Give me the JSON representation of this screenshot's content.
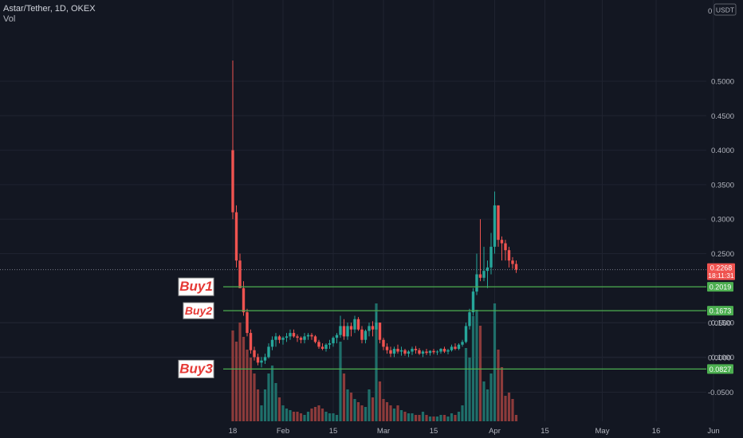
{
  "header": {
    "title": "Astar/Tether, 1D, OKEX",
    "vol_label": "Vol"
  },
  "currency": "USDT",
  "colors": {
    "up": "#26a69a",
    "down": "#ef5350",
    "up_vol": "#1f6f6a",
    "down_vol": "#8c3b3b",
    "level": "#4caf50",
    "bg": "#131722",
    "grid": "#1f2330",
    "axis_text": "#b2b5be",
    "annotation_text": "#e53935"
  },
  "chart_data": {
    "type": "candlestick",
    "price_axis_labels": [
      "0.5000",
      "0.4500",
      "0.4000",
      "0.3500",
      "0.3000",
      "0.2500",
      "0.1500",
      "0.1000"
    ],
    "price_axis_label_values": [
      0.5,
      0.45,
      0.4,
      0.35,
      0.3,
      0.25,
      0.15,
      0.1
    ],
    "volume_axis_labels": [
      "0.0500",
      "0.0000",
      "-0.0500"
    ],
    "volume_axis_label_values": [
      0.05,
      0.0,
      -0.05
    ],
    "x_ticks": [
      {
        "label": "18",
        "day": 0
      },
      {
        "label": "Feb",
        "day": 14
      },
      {
        "label": "15",
        "day": 28
      },
      {
        "label": "Mar",
        "day": 42
      },
      {
        "label": "15",
        "day": 56
      },
      {
        "label": "Apr",
        "day": 73
      },
      {
        "label": "15",
        "day": 87
      },
      {
        "label": "May",
        "day": 103
      },
      {
        "label": "16",
        "day": 118
      },
      {
        "label": "Jun",
        "day": 134
      }
    ],
    "current_price": {
      "value": 0.2268,
      "label": "0.2268",
      "countdown": "18:11:31"
    },
    "levels": [
      {
        "name": "Buy1",
        "value": 0.2019,
        "label": "0.2019"
      },
      {
        "name": "Buy2",
        "value": 0.1673,
        "label": "0.1673"
      },
      {
        "name": "Buy3",
        "value": 0.0827,
        "label": "0.0827"
      }
    ],
    "candles": [
      [
        0.4,
        0.53,
        0.3,
        0.31,
        0.057
      ],
      [
        0.31,
        0.32,
        0.23,
        0.24,
        0.05
      ],
      [
        0.24,
        0.25,
        0.2,
        0.2,
        0.062
      ],
      [
        0.2,
        0.21,
        0.16,
        0.165,
        0.053
      ],
      [
        0.165,
        0.17,
        0.13,
        0.135,
        0.045
      ],
      [
        0.135,
        0.14,
        0.105,
        0.11,
        0.04
      ],
      [
        0.11,
        0.115,
        0.095,
        0.1,
        0.03
      ],
      [
        0.1,
        0.105,
        0.088,
        0.092,
        0.02
      ],
      [
        0.092,
        0.1,
        0.085,
        0.095,
        0.01
      ],
      [
        0.095,
        0.105,
        0.09,
        0.1,
        0.02
      ],
      [
        0.1,
        0.12,
        0.098,
        0.115,
        0.03
      ],
      [
        0.115,
        0.13,
        0.11,
        0.125,
        0.035
      ],
      [
        0.125,
        0.135,
        0.115,
        0.13,
        0.024
      ],
      [
        0.13,
        0.132,
        0.12,
        0.125,
        0.015
      ],
      [
        0.125,
        0.13,
        0.118,
        0.128,
        0.01
      ],
      [
        0.128,
        0.135,
        0.122,
        0.13,
        0.008
      ],
      [
        0.13,
        0.14,
        0.125,
        0.135,
        0.007
      ],
      [
        0.135,
        0.14,
        0.128,
        0.13,
        0.006
      ],
      [
        0.13,
        0.133,
        0.122,
        0.128,
        0.006
      ],
      [
        0.128,
        0.13,
        0.12,
        0.125,
        0.005
      ],
      [
        0.125,
        0.135,
        0.12,
        0.13,
        0.004
      ],
      [
        0.13,
        0.135,
        0.125,
        0.132,
        0.006
      ],
      [
        0.132,
        0.135,
        0.125,
        0.13,
        0.008
      ],
      [
        0.13,
        0.132,
        0.12,
        0.122,
        0.009
      ],
      [
        0.122,
        0.125,
        0.112,
        0.115,
        0.01
      ],
      [
        0.115,
        0.12,
        0.11,
        0.112,
        0.008
      ],
      [
        0.112,
        0.12,
        0.108,
        0.118,
        0.006
      ],
      [
        0.118,
        0.125,
        0.112,
        0.12,
        0.005
      ],
      [
        0.12,
        0.13,
        0.115,
        0.128,
        0.005
      ],
      [
        0.128,
        0.135,
        0.12,
        0.132,
        0.004
      ],
      [
        0.132,
        0.16,
        0.128,
        0.145,
        0.05
      ],
      [
        0.145,
        0.155,
        0.125,
        0.13,
        0.03
      ],
      [
        0.13,
        0.15,
        0.125,
        0.145,
        0.02
      ],
      [
        0.145,
        0.15,
        0.13,
        0.14,
        0.018
      ],
      [
        0.14,
        0.16,
        0.135,
        0.155,
        0.014
      ],
      [
        0.155,
        0.158,
        0.138,
        0.14,
        0.012
      ],
      [
        0.14,
        0.145,
        0.12,
        0.125,
        0.01
      ],
      [
        0.125,
        0.14,
        0.12,
        0.138,
        0.009
      ],
      [
        0.138,
        0.15,
        0.13,
        0.145,
        0.02
      ],
      [
        0.145,
        0.152,
        0.13,
        0.14,
        0.015
      ],
      [
        0.14,
        0.165,
        0.14,
        0.15,
        0.074
      ],
      [
        0.15,
        0.15,
        0.12,
        0.125,
        0.025
      ],
      [
        0.125,
        0.128,
        0.11,
        0.115,
        0.014
      ],
      [
        0.115,
        0.12,
        0.105,
        0.11,
        0.012
      ],
      [
        0.11,
        0.115,
        0.1,
        0.105,
        0.01
      ],
      [
        0.105,
        0.115,
        0.1,
        0.112,
        0.008
      ],
      [
        0.112,
        0.118,
        0.105,
        0.108,
        0.01
      ],
      [
        0.108,
        0.115,
        0.102,
        0.11,
        0.007
      ],
      [
        0.11,
        0.112,
        0.102,
        0.105,
        0.006
      ],
      [
        0.105,
        0.11,
        0.1,
        0.108,
        0.005
      ],
      [
        0.108,
        0.115,
        0.103,
        0.112,
        0.005
      ],
      [
        0.112,
        0.116,
        0.105,
        0.11,
        0.004
      ],
      [
        0.11,
        0.113,
        0.103,
        0.105,
        0.004
      ],
      [
        0.105,
        0.11,
        0.1,
        0.108,
        0.006
      ],
      [
        0.108,
        0.112,
        0.103,
        0.106,
        0.004
      ],
      [
        0.106,
        0.11,
        0.102,
        0.109,
        0.003
      ],
      [
        0.109,
        0.112,
        0.104,
        0.107,
        0.003
      ],
      [
        0.107,
        0.11,
        0.103,
        0.108,
        0.003
      ],
      [
        0.108,
        0.113,
        0.105,
        0.112,
        0.004
      ],
      [
        0.112,
        0.115,
        0.106,
        0.108,
        0.004
      ],
      [
        0.108,
        0.112,
        0.104,
        0.11,
        0.003
      ],
      [
        0.11,
        0.118,
        0.108,
        0.115,
        0.005
      ],
      [
        0.115,
        0.12,
        0.11,
        0.112,
        0.004
      ],
      [
        0.112,
        0.12,
        0.11,
        0.118,
        0.006
      ],
      [
        0.118,
        0.125,
        0.115,
        0.122,
        0.01
      ],
      [
        0.122,
        0.15,
        0.12,
        0.145,
        0.046
      ],
      [
        0.145,
        0.17,
        0.14,
        0.165,
        0.04
      ],
      [
        0.165,
        0.2,
        0.16,
        0.195,
        0.066
      ],
      [
        0.195,
        0.25,
        0.19,
        0.22,
        0.07
      ],
      [
        0.22,
        0.3,
        0.21,
        0.215,
        0.06
      ],
      [
        0.215,
        0.26,
        0.21,
        0.225,
        0.025
      ],
      [
        0.225,
        0.24,
        0.2,
        0.23,
        0.02
      ],
      [
        0.23,
        0.28,
        0.22,
        0.26,
        0.03
      ],
      [
        0.26,
        0.34,
        0.25,
        0.32,
        0.074
      ],
      [
        0.32,
        0.32,
        0.26,
        0.27,
        0.045
      ],
      [
        0.27,
        0.275,
        0.24,
        0.265,
        0.034
      ],
      [
        0.265,
        0.27,
        0.24,
        0.255,
        0.016
      ],
      [
        0.255,
        0.26,
        0.23,
        0.24,
        0.018
      ],
      [
        0.24,
        0.245,
        0.228,
        0.235,
        0.014
      ],
      [
        0.235,
        0.24,
        0.222,
        0.2268,
        0.004
      ]
    ]
  }
}
